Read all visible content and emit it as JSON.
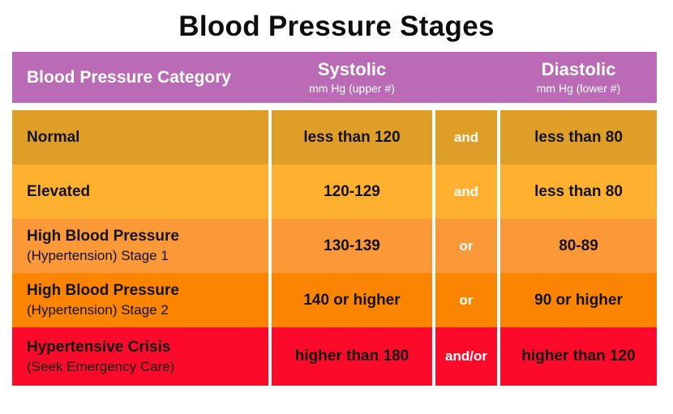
{
  "title": "Blood Pressure Stages",
  "colors": {
    "header_bg": "#bb6bb6",
    "header_text": "#ffffff",
    "title_text": "#0d0d0d",
    "value_text": "#131313",
    "connector_text": "#ffffff",
    "row_normal": "#df9e28",
    "row_elevated": "#ffb02e",
    "row_stage1": "#fb9838",
    "row_stage2": "#fb8500",
    "row_crisis": "#fb0a2a"
  },
  "table": {
    "header": {
      "category": "Blood Pressure Category",
      "systolic_label": "Systolic",
      "systolic_sub": "mm Hg (upper #)",
      "diastolic_label": "Diastolic",
      "diastolic_sub": "mm Hg (lower #)"
    },
    "rows": [
      {
        "category": "Normal",
        "subtitle": "",
        "systolic": "less than 120",
        "connector": "and",
        "diastolic": "less than 80",
        "bg": "#df9e28"
      },
      {
        "category": "Elevated",
        "subtitle": "",
        "systolic": "120-129",
        "connector": "and",
        "diastolic": "less than 80",
        "bg": "#ffb02e"
      },
      {
        "category": "High Blood Pressure",
        "subtitle": "(Hypertension) Stage 1",
        "systolic": "130-139",
        "connector": "or",
        "diastolic": "80-89",
        "bg": "#fb9838"
      },
      {
        "category": "High Blood Pressure",
        "subtitle": "(Hypertension) Stage 2",
        "systolic": "140 or higher",
        "connector": "or",
        "diastolic": "90 or higher",
        "bg": "#fb8500"
      },
      {
        "category": "Hypertensive Crisis",
        "subtitle": "(Seek Emergency Care)",
        "systolic": "higher than 180",
        "connector": "and/or",
        "diastolic": "higher than 120",
        "bg": "#fb0a2a"
      }
    ]
  },
  "chart_data": {
    "type": "table",
    "title": "Blood Pressure Stages",
    "columns": [
      "Blood Pressure Category",
      "Systolic mm Hg (upper #)",
      "Connector",
      "Diastolic mm Hg (lower #)"
    ],
    "rows": [
      [
        "Normal",
        "less than 120",
        "and",
        "less than 80"
      ],
      [
        "Elevated",
        "120-129",
        "and",
        "less than 80"
      ],
      [
        "High Blood Pressure (Hypertension) Stage 1",
        "130-139",
        "or",
        "80-89"
      ],
      [
        "High Blood Pressure (Hypertension) Stage 2",
        "140 or higher",
        "or",
        "90 or higher"
      ],
      [
        "Hypertensive Crisis (Seek Emergency Care)",
        "higher than 180",
        "and/or",
        "higher than 120"
      ]
    ],
    "layout_hints": {
      "row_colors": [
        "#df9e28",
        "#ffb02e",
        "#fb9838",
        "#fb8500",
        "#fb0a2a"
      ],
      "header_color": "#bb6bb6",
      "grid": "white column separators in body rows only"
    }
  }
}
